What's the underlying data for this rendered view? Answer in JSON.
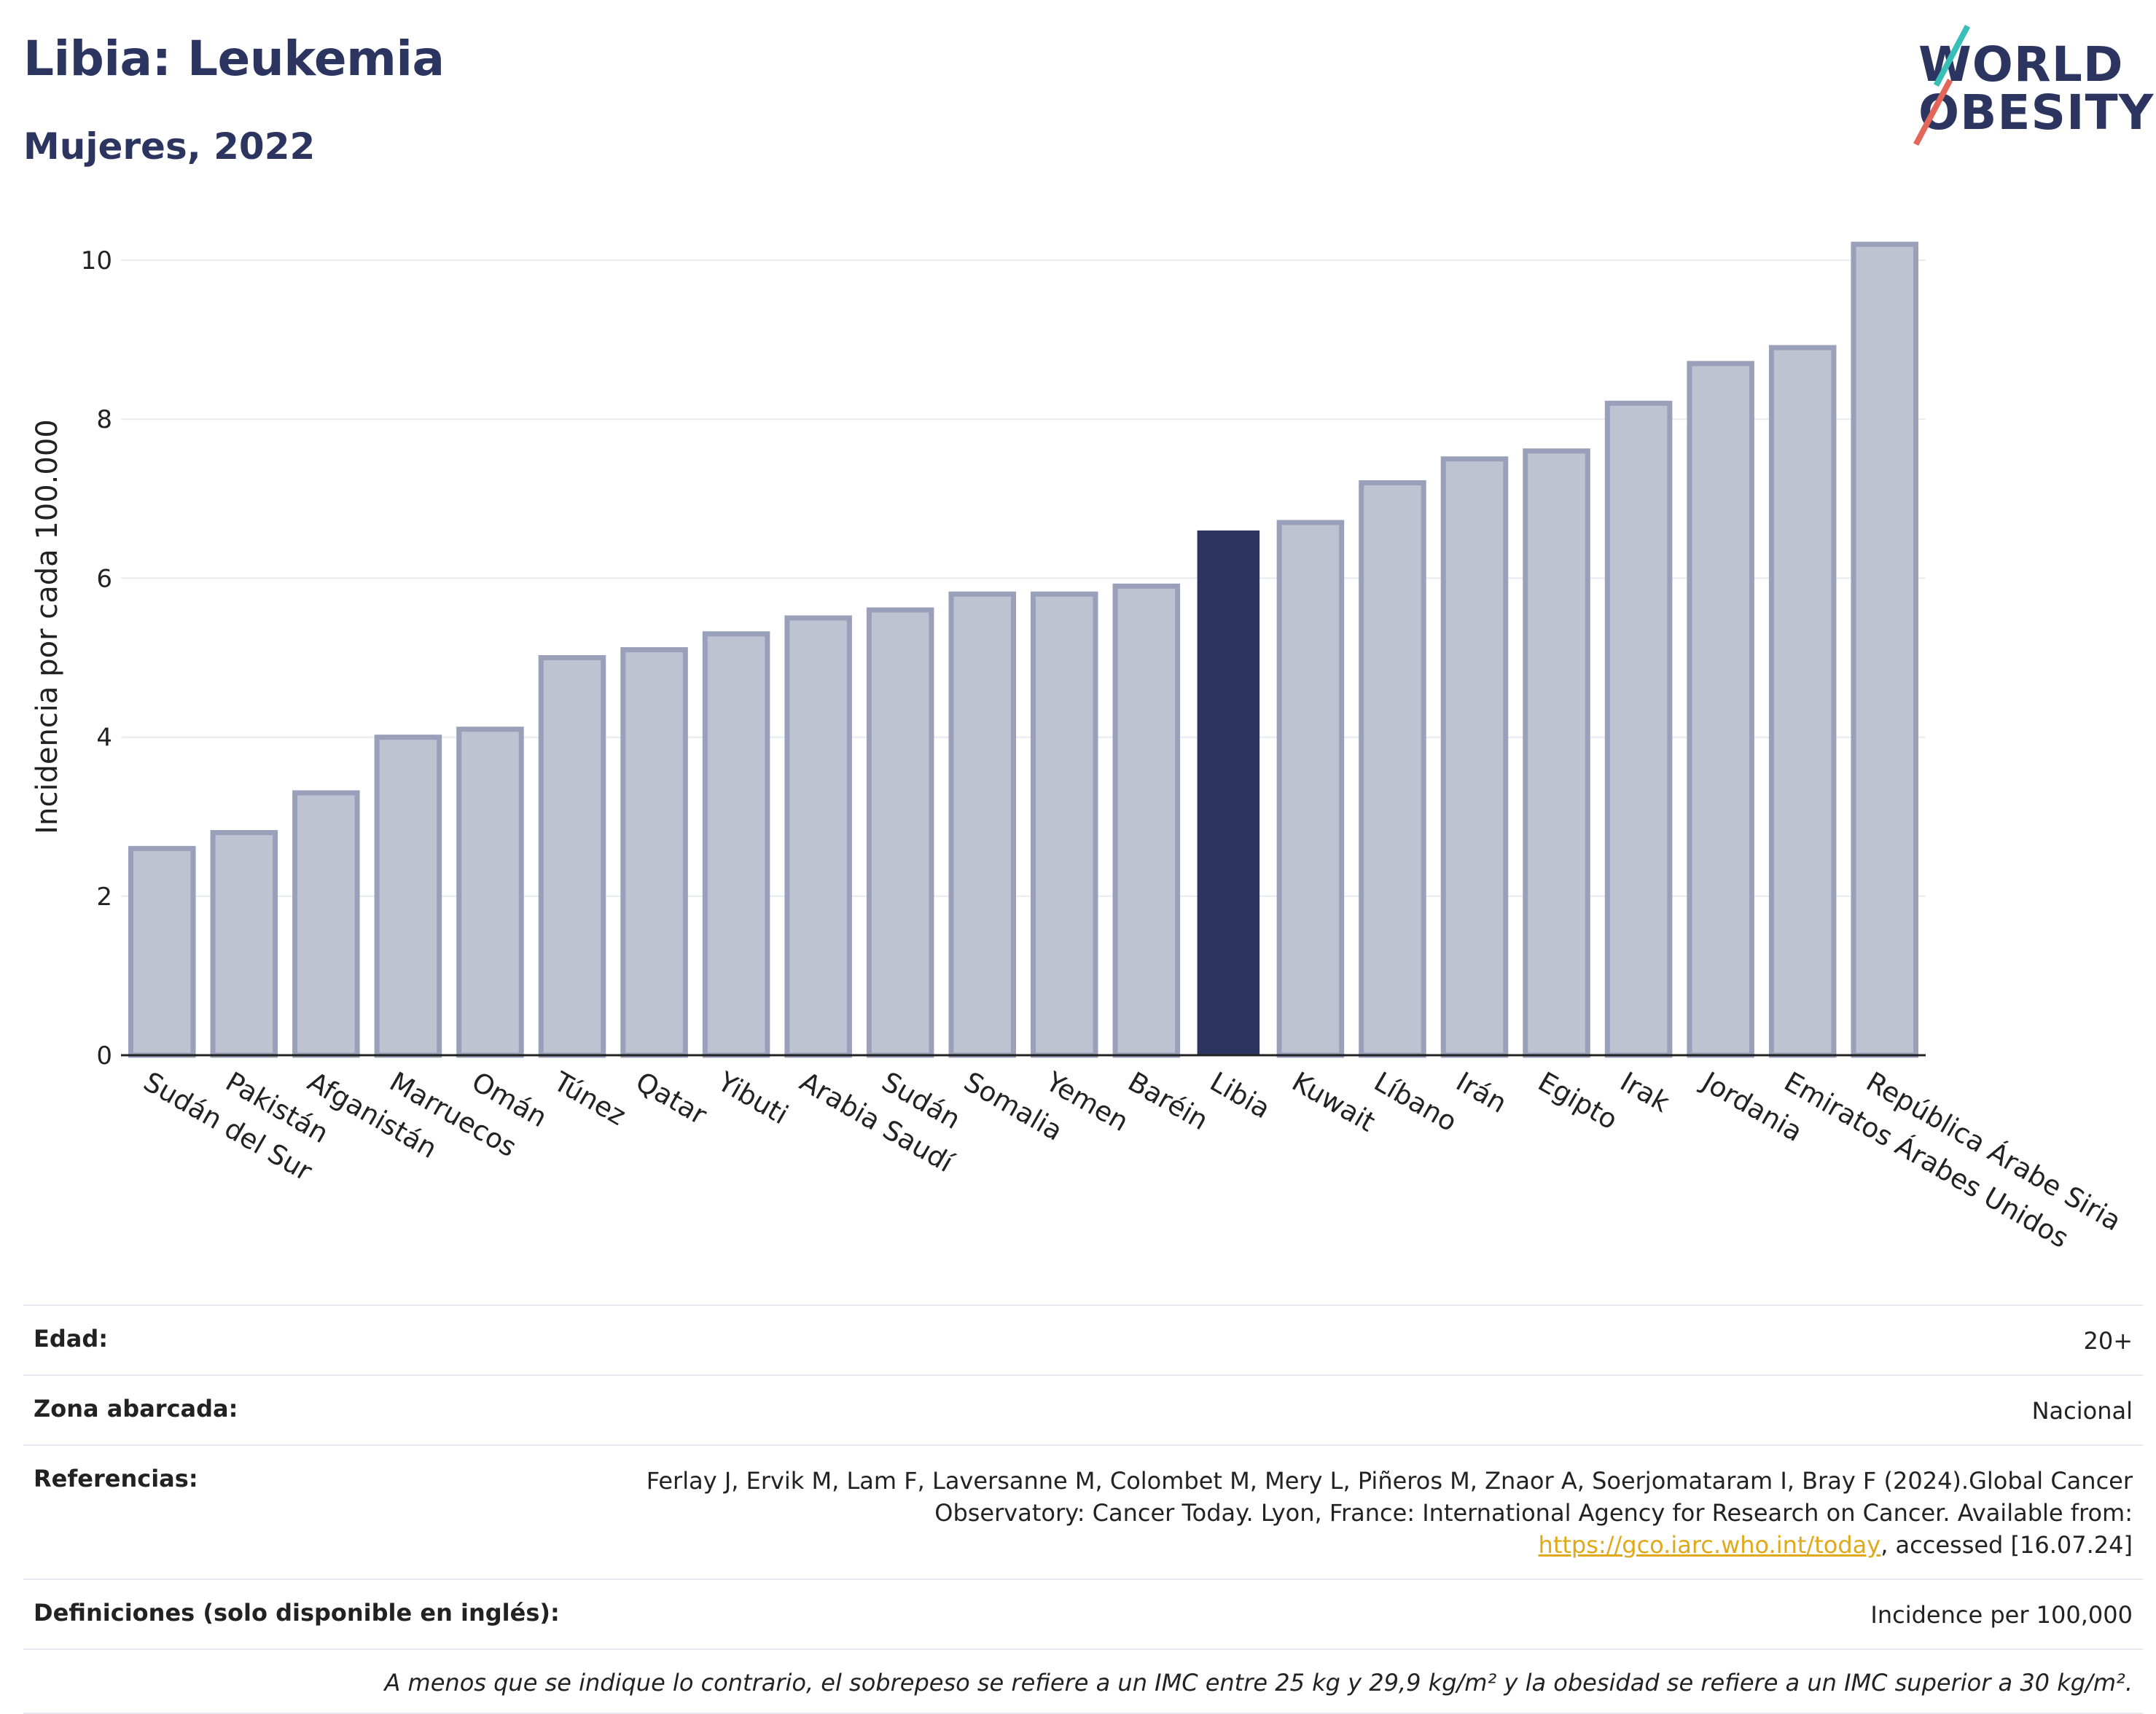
{
  "header": {
    "title": "Libia: Leukemia",
    "subtitle": "Mujeres, 2022"
  },
  "logo": {
    "line1": "WORLD",
    "line2": "OBESITY",
    "colors": {
      "text": "#2b3560",
      "slash_top": "#38bfb8",
      "slash_bottom": "#e2675a"
    }
  },
  "colors": {
    "bar": "#bfc2d1",
    "bar_stroke": "#9aa0b9",
    "highlight": "#2b3560",
    "grid": "#e8eaf0",
    "axis": "#222222"
  },
  "chart_data": {
    "type": "bar",
    "title": "Libia: Leukemia",
    "subtitle": "Mujeres, 2022",
    "xlabel": "",
    "ylabel": "Incidencia por cada 100.000",
    "ylim": [
      0,
      10.5
    ],
    "yticks": [
      0,
      2,
      4,
      6,
      8,
      10
    ],
    "grid": true,
    "highlight": "Libia",
    "categories": [
      "Sudán del Sur",
      "Pakistán",
      "Afganistán",
      "Marruecos",
      "Omán",
      "Túnez",
      "Qatar",
      "Yibuti",
      "Arabia Saudí",
      "Sudán",
      "Somalia",
      "Yemen",
      "Baréin",
      "Libia",
      "Kuwait",
      "Líbano",
      "Irán",
      "Egipto",
      "Irak",
      "Jordania",
      "Emiratos Árabes Unidos",
      "República Árabe Siria"
    ],
    "values": [
      2.6,
      2.8,
      3.3,
      4.0,
      4.1,
      5.0,
      5.1,
      5.3,
      5.5,
      5.6,
      5.8,
      5.8,
      5.9,
      6.6,
      6.7,
      7.2,
      7.5,
      7.6,
      8.2,
      8.7,
      8.9,
      10.2
    ]
  },
  "info": {
    "age_label": "Edad:",
    "age_value": "20+",
    "area_label": "Zona abarcada:",
    "area_value": "Nacional",
    "refs_label": "Referencias:",
    "refs_text_before": "Ferlay J, Ervik M, Lam F, Laversanne M, Colombet M, Mery L, Piñeros M, Znaor A, Soerjomataram I, Bray F (2024).Global Cancer Observatory: Cancer Today. Lyon, France: International Agency for Research on Cancer. Available from: ",
    "refs_link": "https://gco.iarc.who.int/today",
    "refs_text_after": ", accessed [16.07.24]",
    "defs_label": "Definiciones (solo disponible en inglés):",
    "defs_value": "Incidence per 100,000",
    "note": "A menos que se indique lo contrario, el sobrepeso se refiere a un IMC entre 25 kg y 29,9 kg/m² y la obesidad se refiere a un IMC superior a 30 kg/m²."
  }
}
